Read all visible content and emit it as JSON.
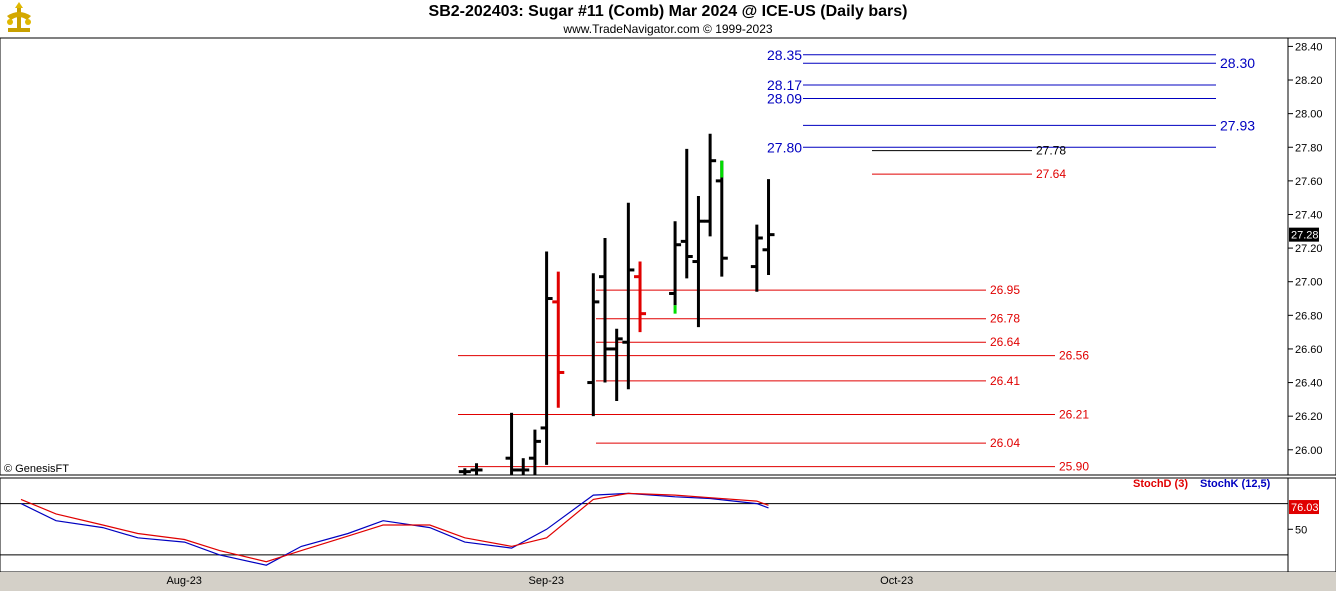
{
  "header": {
    "title": "SB2-202403:  Sugar #11 (Comb) Mar 2024 @ ICE-US  (Daily bars)",
    "subtitle": "www.TradeNavigator.com © 1999-2023",
    "copyright": "© GenesisFT"
  },
  "chart_data": [
    {
      "type": "ohlc",
      "title": "SB2-202403:  Sugar #11 (Comb) Mar 2024 @ ICE-US  (Daily bars)",
      "ylim": [
        25.85,
        28.45
      ],
      "y_ticks": [
        "26.00",
        "26.20",
        "26.40",
        "26.60",
        "26.80",
        "27.00",
        "27.20",
        "27.40",
        "27.60",
        "27.80",
        "28.00",
        "28.20",
        "28.40"
      ],
      "x_ticks": [
        "Aug-23",
        "Sep-23",
        "Oct-23"
      ],
      "last_price": "27.28",
      "colors": {
        "normal": "#000000",
        "down_key": "#e00000",
        "up_key": "#00dd00",
        "support": "#e00000",
        "resistance": "#0000c0"
      },
      "bars": [
        {
          "date": "2023-08-24",
          "open": 25.87,
          "high": 25.89,
          "low": 25.85,
          "close": 25.87,
          "color": "#000000"
        },
        {
          "date": "2023-08-25",
          "open": 25.88,
          "high": 25.92,
          "low": 25.85,
          "close": 25.88,
          "color": "#000000"
        },
        {
          "date": "2023-08-28",
          "open": 25.95,
          "high": 26.22,
          "low": 25.85,
          "close": 25.88,
          "color": "#000000"
        },
        {
          "date": "2023-08-29",
          "open": 25.88,
          "high": 25.95,
          "low": 25.85,
          "close": 25.88,
          "color": "#000000"
        },
        {
          "date": "2023-08-30",
          "open": 25.95,
          "high": 26.12,
          "low": 25.85,
          "close": 26.05,
          "color": "#000000"
        },
        {
          "date": "2023-08-31",
          "open": 26.13,
          "high": 27.18,
          "low": 25.91,
          "close": 26.9,
          "color": "#000000"
        },
        {
          "date": "2023-09-01",
          "open": 26.88,
          "high": 27.06,
          "low": 26.25,
          "close": 26.46,
          "color": "#e00000"
        },
        {
          "date": "2023-09-04",
          "open": 26.4,
          "high": 27.05,
          "low": 26.2,
          "close": 26.88,
          "color": "#000000"
        },
        {
          "date": "2023-09-05",
          "open": 27.03,
          "high": 27.26,
          "low": 26.4,
          "close": 26.6,
          "color": "#000000"
        },
        {
          "date": "2023-09-06",
          "open": 26.6,
          "high": 26.72,
          "low": 26.29,
          "close": 26.66,
          "color": "#000000"
        },
        {
          "date": "2023-09-07",
          "open": 26.64,
          "high": 27.47,
          "low": 26.36,
          "close": 27.07,
          "color": "#000000"
        },
        {
          "date": "2023-09-08",
          "open": 27.03,
          "high": 27.12,
          "low": 26.7,
          "close": 26.81,
          "color": "#e00000"
        },
        {
          "date": "2023-09-11",
          "open": 26.93,
          "high": 27.36,
          "low": 26.86,
          "close": 27.22,
          "color": "#000000"
        },
        {
          "date": "2023-09-12",
          "open": 27.24,
          "high": 27.79,
          "low": 27.02,
          "close": 27.15,
          "color": "#000000"
        },
        {
          "date": "2023-09-13",
          "open": 27.12,
          "high": 27.51,
          "low": 26.73,
          "close": 27.36,
          "color": "#000000"
        },
        {
          "date": "2023-09-14",
          "open": 27.36,
          "high": 27.88,
          "low": 27.27,
          "close": 27.72,
          "color": "#000000"
        },
        {
          "date": "2023-09-15",
          "open": 27.6,
          "high": 27.72,
          "low": 27.03,
          "close": 27.14,
          "color": "#000000"
        },
        {
          "date": "2023-09-18",
          "open": 27.09,
          "high": 27.34,
          "low": 26.94,
          "close": 27.26,
          "color": "#000000"
        },
        {
          "date": "2023-09-19",
          "open": 27.19,
          "high": 27.61,
          "low": 27.04,
          "close": 27.28,
          "color": "#000000"
        }
      ],
      "levels": [
        {
          "value": 28.35,
          "label": "28.35",
          "color": "#0000c0",
          "kind": "resistance"
        },
        {
          "value": 28.3,
          "label": "28.30",
          "color": "#0000c0",
          "kind": "resistance"
        },
        {
          "value": 28.17,
          "label": "28.17",
          "color": "#0000c0",
          "kind": "resistance"
        },
        {
          "value": 28.09,
          "label": "28.09",
          "color": "#0000c0",
          "kind": "resistance"
        },
        {
          "value": 27.93,
          "label": "27.93",
          "color": "#0000c0",
          "kind": "resistance"
        },
        {
          "value": 27.8,
          "label": "27.80",
          "color": "#0000c0",
          "kind": "resistance"
        },
        {
          "value": 27.78,
          "label": "27.78",
          "color": "#000000",
          "kind": "pivot"
        },
        {
          "value": 27.64,
          "label": "27.64",
          "color": "#e00000",
          "kind": "support"
        },
        {
          "value": 26.95,
          "label": "26.95",
          "color": "#e00000",
          "kind": "support"
        },
        {
          "value": 26.78,
          "label": "26.78",
          "color": "#e00000",
          "kind": "support"
        },
        {
          "value": 26.64,
          "label": "26.64",
          "color": "#e00000",
          "kind": "support"
        },
        {
          "value": 26.56,
          "label": "26.56",
          "color": "#e00000",
          "kind": "support"
        },
        {
          "value": 26.41,
          "label": "26.41",
          "color": "#e00000",
          "kind": "support"
        },
        {
          "value": 26.21,
          "label": "26.21",
          "color": "#e00000",
          "kind": "support"
        },
        {
          "value": 26.04,
          "label": "26.04",
          "color": "#e00000",
          "kind": "support"
        },
        {
          "value": 25.9,
          "label": "25.90",
          "color": "#e00000",
          "kind": "support"
        }
      ]
    },
    {
      "type": "line",
      "ylim": [
        0,
        110
      ],
      "y_ticks": [
        "50"
      ],
      "reference_lines": [
        80,
        20
      ],
      "last_value": "76.03",
      "legend": [
        {
          "name": "StochD (3)",
          "color": "#e00000"
        },
        {
          "name": "StochK (12,5)",
          "color": "#0000c0"
        }
      ],
      "series": [
        {
          "name": "StochK (12,5)",
          "color": "#0000c0",
          "dates": [
            "2023-07-17",
            "2023-07-20",
            "2023-07-24",
            "2023-07-27",
            "2023-07-31",
            "2023-08-03",
            "2023-08-07",
            "2023-08-10",
            "2023-08-14",
            "2023-08-17",
            "2023-08-21",
            "2023-08-24",
            "2023-08-28",
            "2023-08-31",
            "2023-09-04",
            "2023-09-07",
            "2023-09-11",
            "2023-09-14",
            "2023-09-18",
            "2023-09-19"
          ],
          "values": [
            80,
            60,
            52,
            40,
            35,
            20,
            8,
            30,
            45,
            60,
            52,
            35,
            28,
            50,
            90,
            92,
            88,
            86,
            80,
            75
          ]
        },
        {
          "name": "StochD (3)",
          "color": "#e00000",
          "dates": [
            "2023-07-17",
            "2023-07-20",
            "2023-07-24",
            "2023-07-27",
            "2023-07-31",
            "2023-08-03",
            "2023-08-07",
            "2023-08-10",
            "2023-08-14",
            "2023-08-17",
            "2023-08-21",
            "2023-08-24",
            "2023-08-28",
            "2023-08-31",
            "2023-09-04",
            "2023-09-07",
            "2023-09-11",
            "2023-09-14",
            "2023-09-18",
            "2023-09-19"
          ],
          "values": [
            85,
            68,
            55,
            45,
            38,
            25,
            12,
            25,
            42,
            55,
            55,
            40,
            30,
            40,
            85,
            92,
            90,
            87,
            83,
            78
          ]
        }
      ]
    }
  ]
}
